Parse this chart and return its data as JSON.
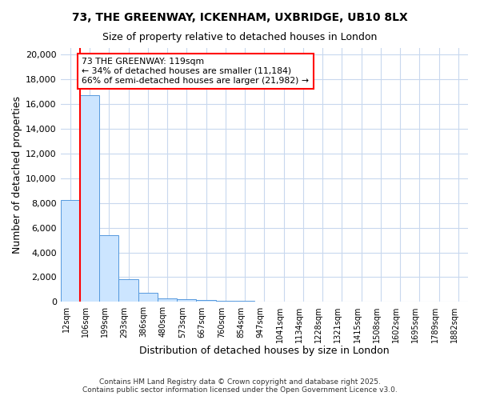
{
  "title1": "73, THE GREENWAY, ICKENHAM, UXBRIDGE, UB10 8LX",
  "title2": "Size of property relative to detached houses in London",
  "xlabel": "Distribution of detached houses by size in London",
  "ylabel": "Number of detached properties",
  "bar_labels": [
    "12sqm",
    "106sqm",
    "199sqm",
    "293sqm",
    "386sqm",
    "480sqm",
    "573sqm",
    "667sqm",
    "760sqm",
    "854sqm",
    "947sqm",
    "1041sqm",
    "1134sqm",
    "1228sqm",
    "1321sqm",
    "1415sqm",
    "1508sqm",
    "1602sqm",
    "1695sqm",
    "1789sqm",
    "1882sqm"
  ],
  "bar_values": [
    8200,
    16700,
    5400,
    1850,
    750,
    300,
    200,
    150,
    100,
    100,
    0,
    0,
    0,
    0,
    0,
    0,
    0,
    0,
    0,
    0,
    0
  ],
  "bar_color": "#cce5ff",
  "bar_edgecolor": "#5599dd",
  "grid_color": "#c8d8ee",
  "background_color": "#ffffff",
  "red_line_x": 0.5,
  "annotation_line1": "73 THE GREENWAY: 119sqm",
  "annotation_line2": "← 34% of detached houses are smaller (11,184)",
  "annotation_line3": "66% of semi-detached houses are larger (21,982) →",
  "ylim": [
    0,
    20500
  ],
  "yticks": [
    0,
    2000,
    4000,
    6000,
    8000,
    10000,
    12000,
    14000,
    16000,
    18000,
    20000
  ],
  "footer1": "Contains HM Land Registry data © Crown copyright and database right 2025.",
  "footer2": "Contains public sector information licensed under the Open Government Licence v3.0."
}
